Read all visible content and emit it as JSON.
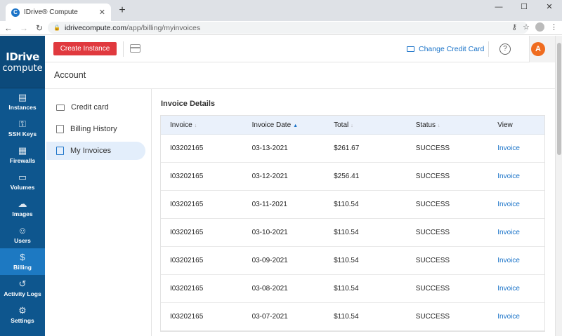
{
  "browser": {
    "tab_title": "IDrive® Compute",
    "favicon_letter": "C",
    "url_host": "idrivecompute.com",
    "url_path": "/app/billing/myinvoices"
  },
  "logo": {
    "top": "IDrive",
    "bottom": "compute"
  },
  "sidebar": {
    "items": [
      {
        "label": "Instances",
        "icon": "instances-icon",
        "glyph": "▤"
      },
      {
        "label": "SSH Keys",
        "icon": "key-icon",
        "glyph": "⚿"
      },
      {
        "label": "Firewalls",
        "icon": "firewall-icon",
        "glyph": "▦"
      },
      {
        "label": "Volumes",
        "icon": "volume-icon",
        "glyph": "▭"
      },
      {
        "label": "Images",
        "icon": "cloud-icon",
        "glyph": "☁"
      },
      {
        "label": "Users",
        "icon": "user-icon",
        "glyph": "☺"
      },
      {
        "label": "Billing",
        "icon": "billing-icon",
        "glyph": "$"
      },
      {
        "label": "Activity Logs",
        "icon": "history-icon",
        "glyph": "↺"
      },
      {
        "label": "Settings",
        "icon": "gear-icon",
        "glyph": "⚙"
      }
    ],
    "active": "Billing"
  },
  "topbar": {
    "create_label": "Create Instance",
    "change_cc_label": "Change Credit Card",
    "help_glyph": "?",
    "avatar_letter": "A"
  },
  "account": {
    "title": "Account"
  },
  "submenu": {
    "items": [
      {
        "label": "Credit card"
      },
      {
        "label": "Billing History"
      },
      {
        "label": "My Invoices"
      }
    ]
  },
  "invoices": {
    "title": "Invoice Details",
    "headers": [
      "Invoice",
      "Invoice Date",
      "Total",
      "Status",
      "View"
    ],
    "rows": [
      {
        "invoice": "I03202165",
        "date": "03-13-2021",
        "total": "$261.67",
        "status": "SUCCESS",
        "view": "Invoice"
      },
      {
        "invoice": "I03202165",
        "date": "03-12-2021",
        "total": "$256.41",
        "status": "SUCCESS",
        "view": "Invoice"
      },
      {
        "invoice": "I03202165",
        "date": "03-11-2021",
        "total": "$110.54",
        "status": "SUCCESS",
        "view": "Invoice"
      },
      {
        "invoice": "I03202165",
        "date": "03-10-2021",
        "total": "$110.54",
        "status": "SUCCESS",
        "view": "Invoice"
      },
      {
        "invoice": "I03202165",
        "date": "03-09-2021",
        "total": "$110.54",
        "status": "SUCCESS",
        "view": "Invoice"
      },
      {
        "invoice": "I03202165",
        "date": "03-08-2021",
        "total": "$110.54",
        "status": "SUCCESS",
        "view": "Invoice"
      },
      {
        "invoice": "I03202165",
        "date": "03-07-2021",
        "total": "$110.54",
        "status": "SUCCESS",
        "view": "Invoice"
      }
    ]
  },
  "colors": {
    "sidebar": "#0e568e",
    "accent": "#1a73c8",
    "create": "#e0393e",
    "avatar": "#ef6c1f"
  }
}
